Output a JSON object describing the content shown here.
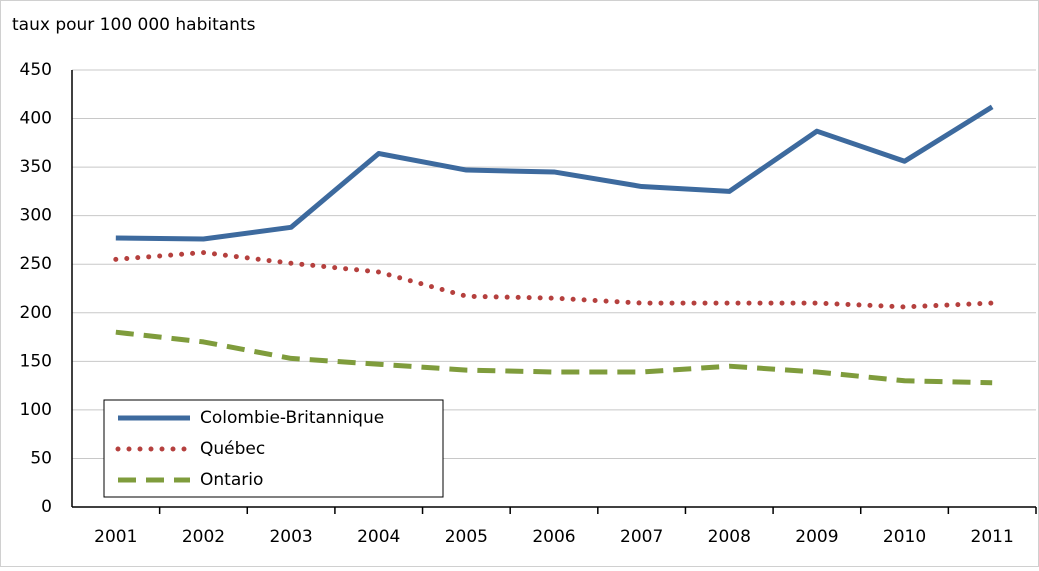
{
  "chart_data": {
    "type": "line",
    "title": "taux pour 100 000 habitants",
    "categories": [
      "2001",
      "2002",
      "2003",
      "2004",
      "2005",
      "2006",
      "2007",
      "2008",
      "2009",
      "2010",
      "2011"
    ],
    "series": [
      {
        "name": "Colombie-Britannique",
        "color": "#3d6a9e",
        "style": "solid",
        "values": [
          277,
          276,
          288,
          364,
          347,
          345,
          330,
          325,
          387,
          356,
          412
        ]
      },
      {
        "name": "Québec",
        "color": "#b5403e",
        "style": "dotted",
        "values": [
          255,
          262,
          251,
          242,
          217,
          215,
          210,
          210,
          210,
          206,
          210
        ]
      },
      {
        "name": "Ontario",
        "color": "#7f9c3c",
        "style": "dashed",
        "values": [
          180,
          170,
          153,
          147,
          141,
          139,
          139,
          145,
          139,
          130,
          128
        ]
      }
    ],
    "ylim": [
      0,
      450
    ],
    "yticks": [
      0,
      50,
      100,
      150,
      200,
      250,
      300,
      350,
      400,
      450
    ],
    "grid": true,
    "legend": "lower-left"
  }
}
